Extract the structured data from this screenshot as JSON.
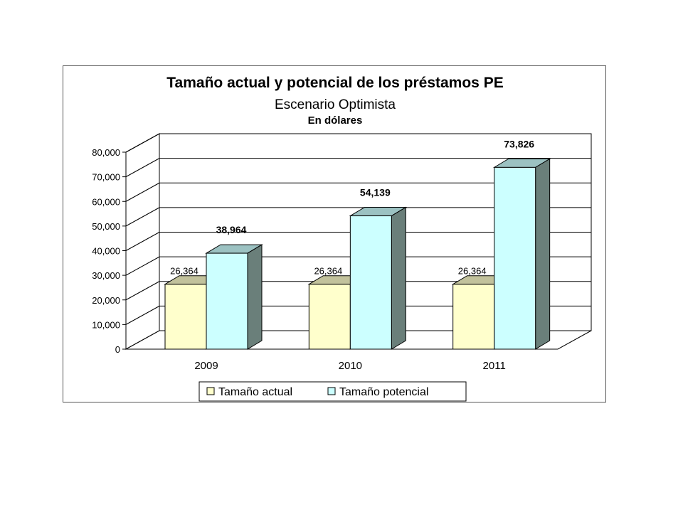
{
  "colors": {
    "actual_front": "#FFFFCC",
    "actual_top": "#C2C29C",
    "actual_side": "#9A9A78",
    "potencial_front": "#CCFFFF",
    "potencial_top": "#9CC2C2",
    "potencial_side": "#6A7F7A",
    "grid": "#000000",
    "wall": "#FFFFFF"
  },
  "chart_data": {
    "type": "bar",
    "title": "Tamaño actual y potencial de los préstamos PE",
    "subtitle": "Escenario Optimista",
    "subtitle2": "En dólares",
    "categories": [
      "2009",
      "2010",
      "2011"
    ],
    "series": [
      {
        "name": "Tamaño actual",
        "values": [
          26364,
          26364,
          26364
        ],
        "labels": [
          "26,364",
          "26,364",
          "26,364"
        ]
      },
      {
        "name": "Tamaño potencial",
        "values": [
          38964,
          54139,
          73826
        ],
        "labels": [
          "38,964",
          "54,139",
          "73,826"
        ]
      }
    ],
    "ylim": [
      0,
      80000
    ],
    "yticks": [
      0,
      10000,
      20000,
      30000,
      40000,
      50000,
      60000,
      70000,
      80000
    ],
    "ytick_labels": [
      "0",
      "10,000",
      "20,000",
      "30,000",
      "40,000",
      "50,000",
      "60,000",
      "70,000",
      "80,000"
    ],
    "grid": true,
    "legend_position": "bottom"
  }
}
